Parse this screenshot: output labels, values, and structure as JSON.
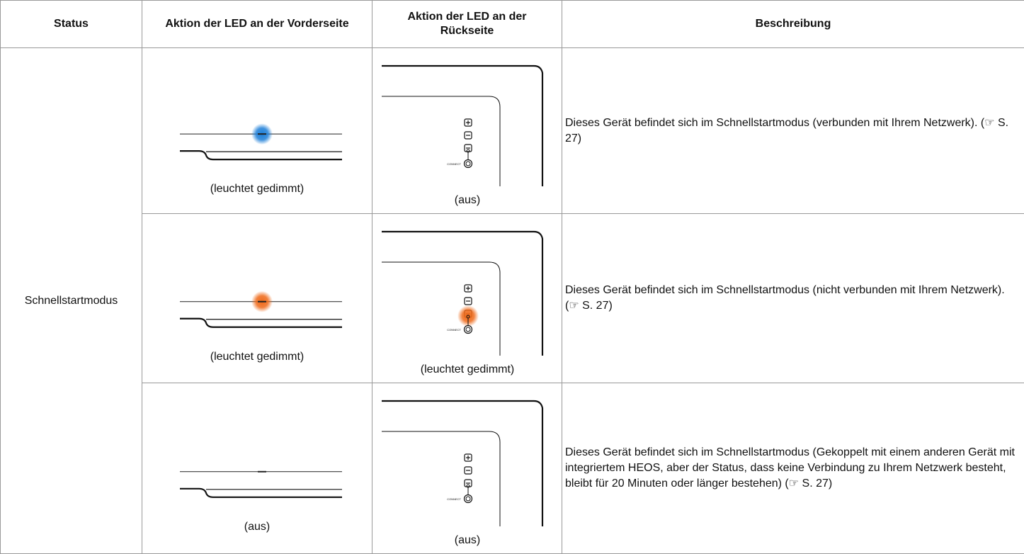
{
  "table": {
    "header": [
      "Status",
      "Aktion der LED an der Vorderseite",
      "Aktion der LED an der Rückseite",
      "Beschreibung"
    ],
    "status": "Schnellstartmodus",
    "connect_label": "CONNECT",
    "rows": [
      {
        "front": "(leuchtet gedimmt)",
        "back": "(aus)",
        "description": "Dieses Gerät befindet sich im Schnellstartmodus (verbunden mit Ihrem Netzwerk). (☞ S. 27)"
      },
      {
        "front": "(leuchtet gedimmt)",
        "back": "(leuchtet gedimmt)",
        "description": "Dieses Gerät befindet sich im Schnellstartmodus (nicht verbunden mit Ihrem Netzwerk). (☞ S. 27)"
      },
      {
        "front": "(aus)",
        "back": "(aus)",
        "description": "Dieses Gerät befindet sich im Schnellstartmodus (Gekoppelt mit einem anderen Gerät mit integriertem HEOS, aber der Status, dass keine Verbindung zu Ihrem Netzwerk besteht, bleibt für 20 Minuten oder länger bestehen) (☞ S. 27)"
      }
    ]
  }
}
